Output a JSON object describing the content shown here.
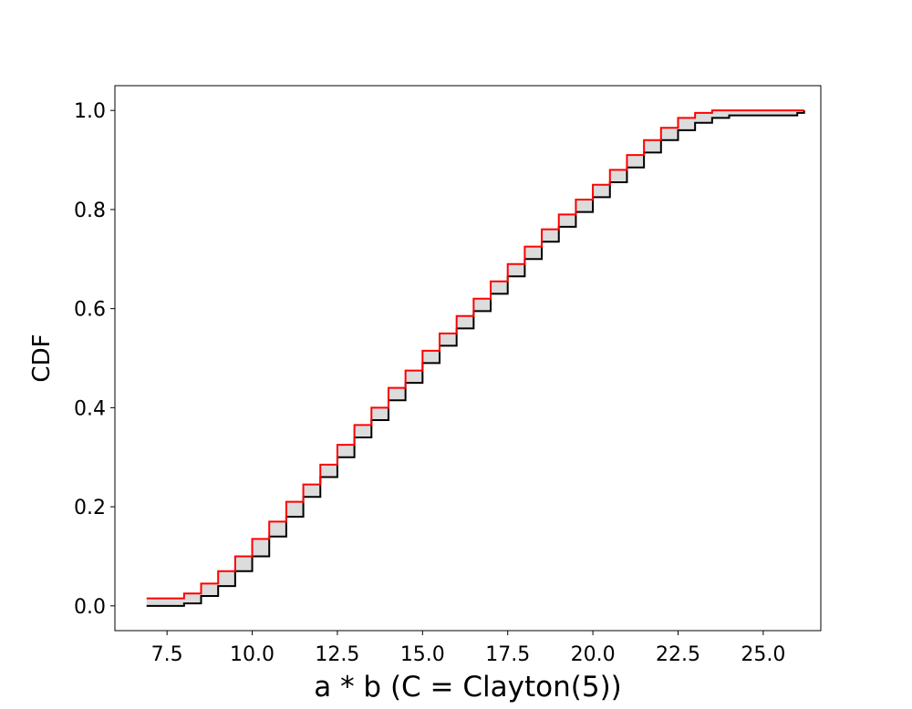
{
  "chart_data": {
    "type": "step",
    "xlabel": "a * b (C = Clayton(5))",
    "ylabel": "CDF",
    "xlim": [
      5.97,
      26.69
    ],
    "ylim": [
      -0.05,
      1.05
    ],
    "xticks": [
      7.5,
      {
        "value": 10,
        "label": "10.0"
      },
      12.5,
      {
        "value": 15,
        "label": "15.0"
      },
      17.5,
      {
        "value": 20,
        "label": "20.0"
      },
      22.5,
      {
        "value": 25,
        "label": "25.0"
      }
    ],
    "yticks": [
      {
        "value": 0,
        "label": "0.0"
      },
      0.2,
      0.4,
      0.6,
      0.8,
      {
        "value": 1,
        "label": "1.0"
      }
    ],
    "fill_color": "#dcdcdc",
    "x": [
      6.9,
      7.5,
      8,
      8.5,
      9,
      9.5,
      10,
      10.5,
      11,
      11.5,
      12,
      12.5,
      13,
      13.5,
      14,
      14.5,
      15,
      15.5,
      16,
      16.5,
      17,
      17.5,
      18,
      18.5,
      19,
      19.5,
      20,
      20.5,
      21,
      21.5,
      22,
      22.5,
      23,
      23.5,
      24,
      24.5,
      25,
      25.5,
      26,
      26.2
    ],
    "series": [
      {
        "color": "#ff0000",
        "values": [
          0.015,
          0.015,
          0.025,
          0.045,
          0.07,
          0.1,
          0.135,
          0.17,
          0.21,
          0.245,
          0.285,
          0.325,
          0.365,
          0.4,
          0.44,
          0.475,
          0.515,
          0.55,
          0.585,
          0.62,
          0.655,
          0.69,
          0.725,
          0.76,
          0.79,
          0.82,
          0.85,
          0.88,
          0.91,
          0.94,
          0.965,
          0.985,
          0.995,
          1,
          1,
          1,
          1,
          1,
          1,
          1
        ]
      },
      {
        "color": "#000000",
        "values": [
          0,
          0,
          0.005,
          0.02,
          0.04,
          0.07,
          0.1,
          0.14,
          0.18,
          0.22,
          0.26,
          0.3,
          0.34,
          0.375,
          0.415,
          0.45,
          0.49,
          0.525,
          0.56,
          0.595,
          0.63,
          0.665,
          0.7,
          0.735,
          0.765,
          0.795,
          0.825,
          0.855,
          0.885,
          0.915,
          0.94,
          0.96,
          0.975,
          0.985,
          0.99,
          0.99,
          0.99,
          0.99,
          0.995,
          1
        ]
      }
    ]
  }
}
